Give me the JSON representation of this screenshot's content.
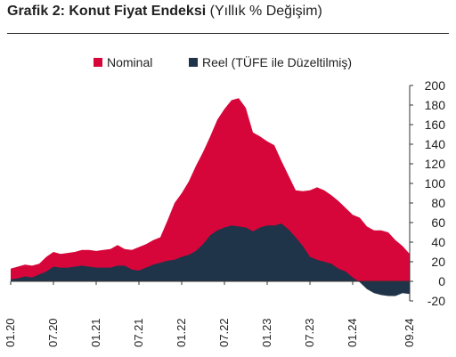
{
  "title": {
    "bold": "Grafik 2: Konut Fiyat Endeksi",
    "light": "(Yıllık % Değişim)"
  },
  "colors": {
    "nominal": "#d6063a",
    "real": "#1f3349"
  },
  "chart_data": {
    "type": "area",
    "title": "Grafik 2: Konut Fiyat Endeksi (Yıllık % Değişim)",
    "legend_position": "top",
    "grid": false,
    "ylim": [
      -20,
      200
    ],
    "yticks": [
      -20,
      0,
      20,
      40,
      60,
      80,
      100,
      120,
      140,
      160,
      180,
      200
    ],
    "xtick_labels": [
      "01.20",
      "07.20",
      "01.21",
      "07.21",
      "01.22",
      "07.22",
      "01.23",
      "07.23",
      "01.24",
      "09.24"
    ],
    "x": [
      "01.20",
      "02.20",
      "03.20",
      "04.20",
      "05.20",
      "06.20",
      "07.20",
      "08.20",
      "09.20",
      "10.20",
      "11.20",
      "12.20",
      "01.21",
      "02.21",
      "03.21",
      "04.21",
      "05.21",
      "06.21",
      "07.21",
      "08.21",
      "09.21",
      "10.21",
      "11.21",
      "12.21",
      "01.22",
      "02.22",
      "03.22",
      "04.22",
      "05.22",
      "06.22",
      "07.22",
      "08.22",
      "09.22",
      "10.22",
      "11.22",
      "12.22",
      "01.23",
      "02.23",
      "03.23",
      "04.23",
      "05.23",
      "06.23",
      "07.23",
      "08.23",
      "09.23",
      "10.23",
      "11.23",
      "12.23",
      "01.24",
      "02.24",
      "03.24",
      "04.24",
      "05.24",
      "06.24",
      "07.24",
      "08.24",
      "09.24"
    ],
    "series": [
      {
        "name": "Nominal",
        "color": "#d6063a",
        "values": [
          13,
          15,
          17,
          16,
          18,
          25,
          30,
          28,
          29,
          30,
          32,
          32,
          31,
          32,
          33,
          37,
          33,
          32,
          35,
          38,
          42,
          45,
          62,
          80,
          90,
          102,
          118,
          132,
          148,
          165,
          176,
          185,
          187,
          177,
          152,
          148,
          143,
          139,
          123,
          108,
          93,
          92,
          93,
          96,
          93,
          88,
          82,
          75,
          68,
          65,
          56,
          52,
          52,
          50,
          42,
          36,
          28
        ]
      },
      {
        "name": "Reel (TÜFE ile Düzeltilmiş)",
        "color": "#1f3349",
        "values": [
          2,
          3,
          5,
          4,
          7,
          10,
          15,
          14,
          14,
          15,
          16,
          15,
          14,
          14,
          14,
          16,
          16,
          12,
          11,
          14,
          17,
          19,
          21,
          22,
          25,
          27,
          31,
          38,
          47,
          52,
          55,
          57,
          56,
          55,
          51,
          55,
          57,
          57,
          59,
          53,
          45,
          36,
          25,
          22,
          20,
          18,
          13,
          10,
          4,
          -1,
          -8,
          -12,
          -14,
          -15,
          -15,
          -12,
          -13
        ]
      }
    ]
  }
}
